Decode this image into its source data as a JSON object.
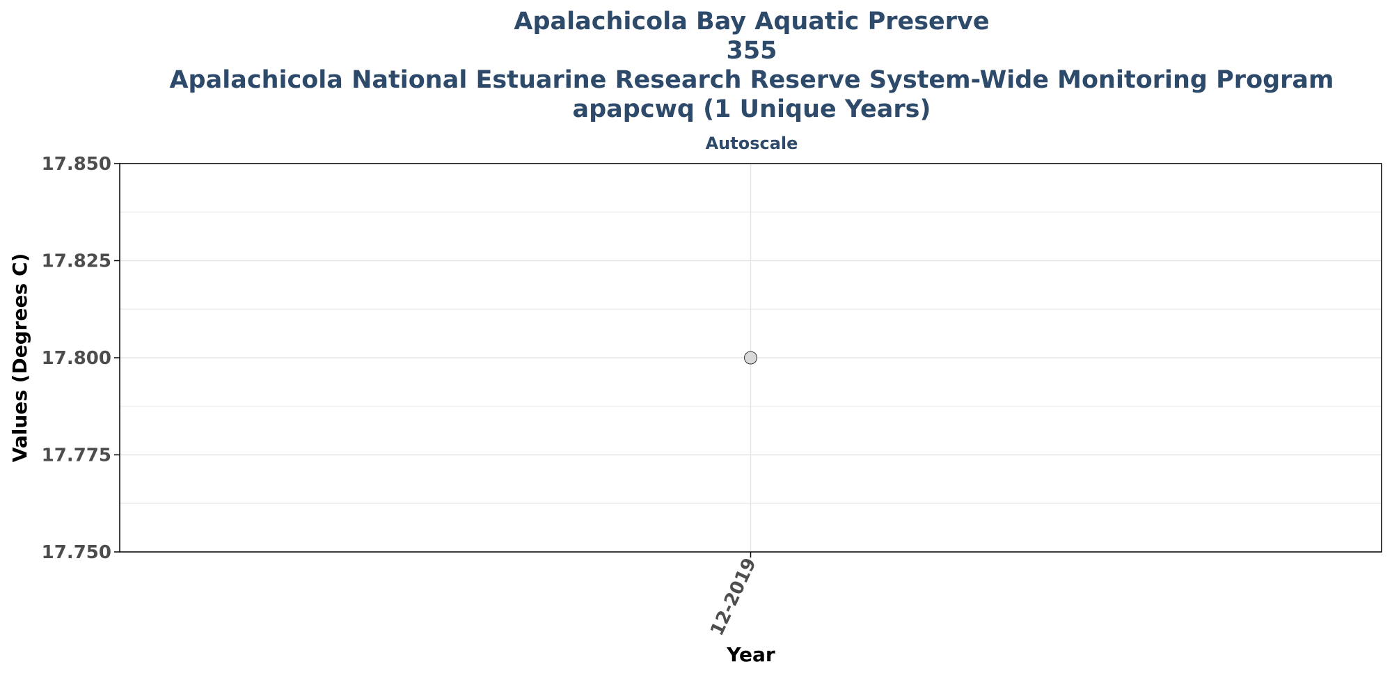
{
  "chart_data": {
    "type": "scatter",
    "title_lines": [
      "Apalachicola Bay Aquatic Preserve",
      "355",
      "Apalachicola National Estuarine Research Reserve System-Wide Monitoring Program",
      "apapcwq (1 Unique Years)"
    ],
    "subtitle": "Autoscale",
    "xlabel": "Year",
    "ylabel": "Values (Degrees C)",
    "categories": [
      "12-2019"
    ],
    "ylim": [
      17.75,
      17.85
    ],
    "yticks": [
      "17.750",
      "17.775",
      "17.800",
      "17.825",
      "17.850"
    ],
    "series": [
      {
        "points": [
          {
            "x": "12-2019",
            "y": 17.8
          }
        ]
      }
    ],
    "grid": true,
    "legend": "none",
    "colors": {
      "title": "#2e4a6b",
      "point_fill": "#d9d9d9",
      "point_stroke": "#333333",
      "grid": "#e5e5e5",
      "axis": "#000000",
      "tick_label": "#4d4d4d"
    }
  }
}
